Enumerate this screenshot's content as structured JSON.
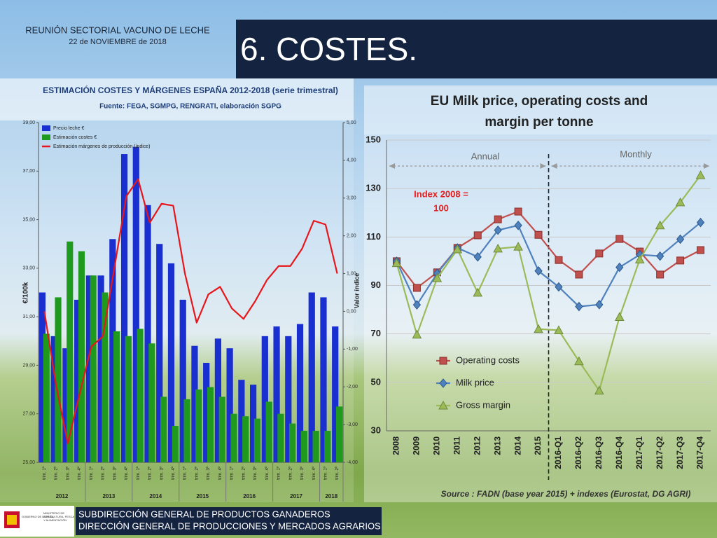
{
  "header": {
    "meeting": "REUNIÓN SECTORIAL VACUNO DE LECHE",
    "date": "22 de NOVIEMBRE de 2018",
    "title": "6. COSTES."
  },
  "footer": {
    "logo_left": "GOBIERNO DE ESPAÑA",
    "logo_right": "MINISTERIO DE AGRICULTURA, PESCA Y ALIMENTACIÓN",
    "line1": "SUBDIRECCIÓN GENERAL DE PRODUCTOS GANADEROS",
    "line2": "DIRECCIÓN GENERAL DE PRODUCCIONES Y MERCADOS AGRARIOS"
  },
  "chart_data": [
    {
      "type": "bar",
      "title": "ESTIMACIÓN COSTES Y MÁRGENES ESPAÑA 2012-2018 (serie trimestral)",
      "subtitle": "Fuente: FEGA, SGMPG, RENGRATI, elaboración SGPG",
      "ylabel": "€/100k",
      "y2label": "Valor índice",
      "groups": [
        {
          "name": "2012",
          "categories": [
            "trim. 1º",
            "trim. 2º",
            "trim. 3º",
            "trim. 4º"
          ]
        },
        {
          "name": "2013",
          "categories": [
            "trim. 1º",
            "trim. 2º",
            "trim. 3º",
            "trim. 4º"
          ]
        },
        {
          "name": "2014",
          "categories": [
            "trim. 1º",
            "trim. 2º",
            "trim. 3º",
            "trim. 4º"
          ]
        },
        {
          "name": "2015",
          "categories": [
            "trim. 1º",
            "trim. 2º",
            "trim. 3º",
            "trim. 4º"
          ]
        },
        {
          "name": "2016",
          "categories": [
            "trim. 1º",
            "trim. 2º",
            "trim. 3º",
            "trim. 4º"
          ]
        },
        {
          "name": "2017",
          "categories": [
            "trim. 1º",
            "trim. 2º",
            "trim. 3º",
            "trim. 4º"
          ]
        },
        {
          "name": "2018",
          "categories": [
            "trim. 1º",
            "trim. 2º"
          ]
        }
      ],
      "series": [
        {
          "name": "Precio leche €",
          "color": "#1a2fd0",
          "values": [
            32.0,
            30.2,
            29.7,
            31.7,
            32.7,
            32.7,
            34.2,
            37.7,
            38.0,
            35.6,
            34.0,
            33.2,
            31.7,
            29.8,
            29.1,
            30.1,
            29.7,
            28.4,
            28.2,
            30.2,
            30.6,
            30.2,
            30.7,
            32.0,
            31.8,
            30.6
          ]
        },
        {
          "name": "Estimación costes €",
          "color": "#1f9a1f",
          "values": [
            30.3,
            31.8,
            34.1,
            33.7,
            32.7,
            32.0,
            30.4,
            30.2,
            30.5,
            29.9,
            27.7,
            26.5,
            27.6,
            28.0,
            28.1,
            27.7,
            27.0,
            26.9,
            26.8,
            27.5,
            27.0,
            26.6,
            26.3,
            26.3,
            26.3,
            27.3
          ]
        },
        {
          "name": "Estimación márgenes de producción (índice)",
          "color": "#e8161b",
          "type": "line",
          "axis": "y2",
          "values": [
            0.0,
            -1.96,
            -3.5,
            -2.2,
            -0.94,
            -0.66,
            1.2,
            3.05,
            3.5,
            2.35,
            2.85,
            2.8,
            1.0,
            -0.3,
            0.45,
            0.65,
            0.08,
            -0.2,
            0.27,
            0.83,
            1.2,
            1.2,
            1.66,
            2.4,
            2.3,
            1.0
          ]
        }
      ],
      "ylim": [
        25,
        39
      ],
      "yticks": [
        {
          "value": 25,
          "label": "25,00"
        },
        {
          "value": 27,
          "label": "27,00"
        },
        {
          "value": 29,
          "label": "29,00"
        },
        {
          "value": 31,
          "label": "31,00"
        },
        {
          "value": 33,
          "label": "33,00"
        },
        {
          "value": 35,
          "label": "35,00"
        },
        {
          "value": 37,
          "label": "37,00"
        },
        {
          "value": 39,
          "label": "39,00"
        }
      ],
      "y2lim": [
        -4,
        5
      ],
      "y2ticks": [
        {
          "value": -4,
          "label": "-4,00"
        },
        {
          "value": -3,
          "label": "-3,00"
        },
        {
          "value": -2,
          "label": "-2,00"
        },
        {
          "value": -1,
          "label": "-1,00"
        },
        {
          "value": 0,
          "label": "0,00"
        },
        {
          "value": 1,
          "label": "1,00"
        },
        {
          "value": 2,
          "label": "2,00"
        },
        {
          "value": 3,
          "label": "3,00"
        },
        {
          "value": 4,
          "label": "4,00"
        },
        {
          "value": 5,
          "label": "5,00"
        }
      ],
      "grid": false,
      "legend": "top-left"
    },
    {
      "type": "line",
      "title": "EU Milk price, operating costs and margin per tonne",
      "categories": [
        "2008",
        "2009",
        "2010",
        "2011",
        "2012",
        "2013",
        "2014",
        "2015",
        "2016-Q1",
        "2016-Q2",
        "2016-Q3",
        "2016-Q4",
        "2017-Q1",
        "2017-Q2",
        "2017-Q3",
        "2017-Q4"
      ],
      "series": [
        {
          "name": "Operating costs",
          "color": "#c0504d",
          "marker": "square",
          "values": [
            100,
            89,
            95.4,
            105.5,
            110.7,
            117.3,
            120.5,
            110.9,
            100.5,
            94.5,
            103.2,
            109.2,
            104,
            94.5,
            100.3,
            104.6
          ]
        },
        {
          "name": "Milk price",
          "color": "#4f81bd",
          "marker": "diamond",
          "values": [
            100,
            82,
            95,
            105.5,
            101.8,
            112.8,
            114.8,
            96,
            89.4,
            81.3,
            82.1,
            97.5,
            102.7,
            102.1,
            109.1,
            116
          ]
        },
        {
          "name": "Gross margin",
          "color": "#9bbb59",
          "marker": "triangle",
          "values": [
            99.2,
            69.7,
            93,
            104.9,
            87,
            105.2,
            106,
            72,
            71.5,
            58.7,
            46.6,
            77,
            100.7,
            114.8,
            124.3,
            135.5
          ]
        }
      ],
      "ylim": [
        30,
        150
      ],
      "yticks": [
        30,
        50,
        70,
        90,
        110,
        130,
        150
      ],
      "grid": true,
      "legend": "bottom-left",
      "annotations": [
        "Annual",
        "Monthly",
        "Index 2008 =",
        "100"
      ],
      "source": "Source : FADN (base year 2015) + indexes (Eurostat, DG AGRI)"
    }
  ]
}
